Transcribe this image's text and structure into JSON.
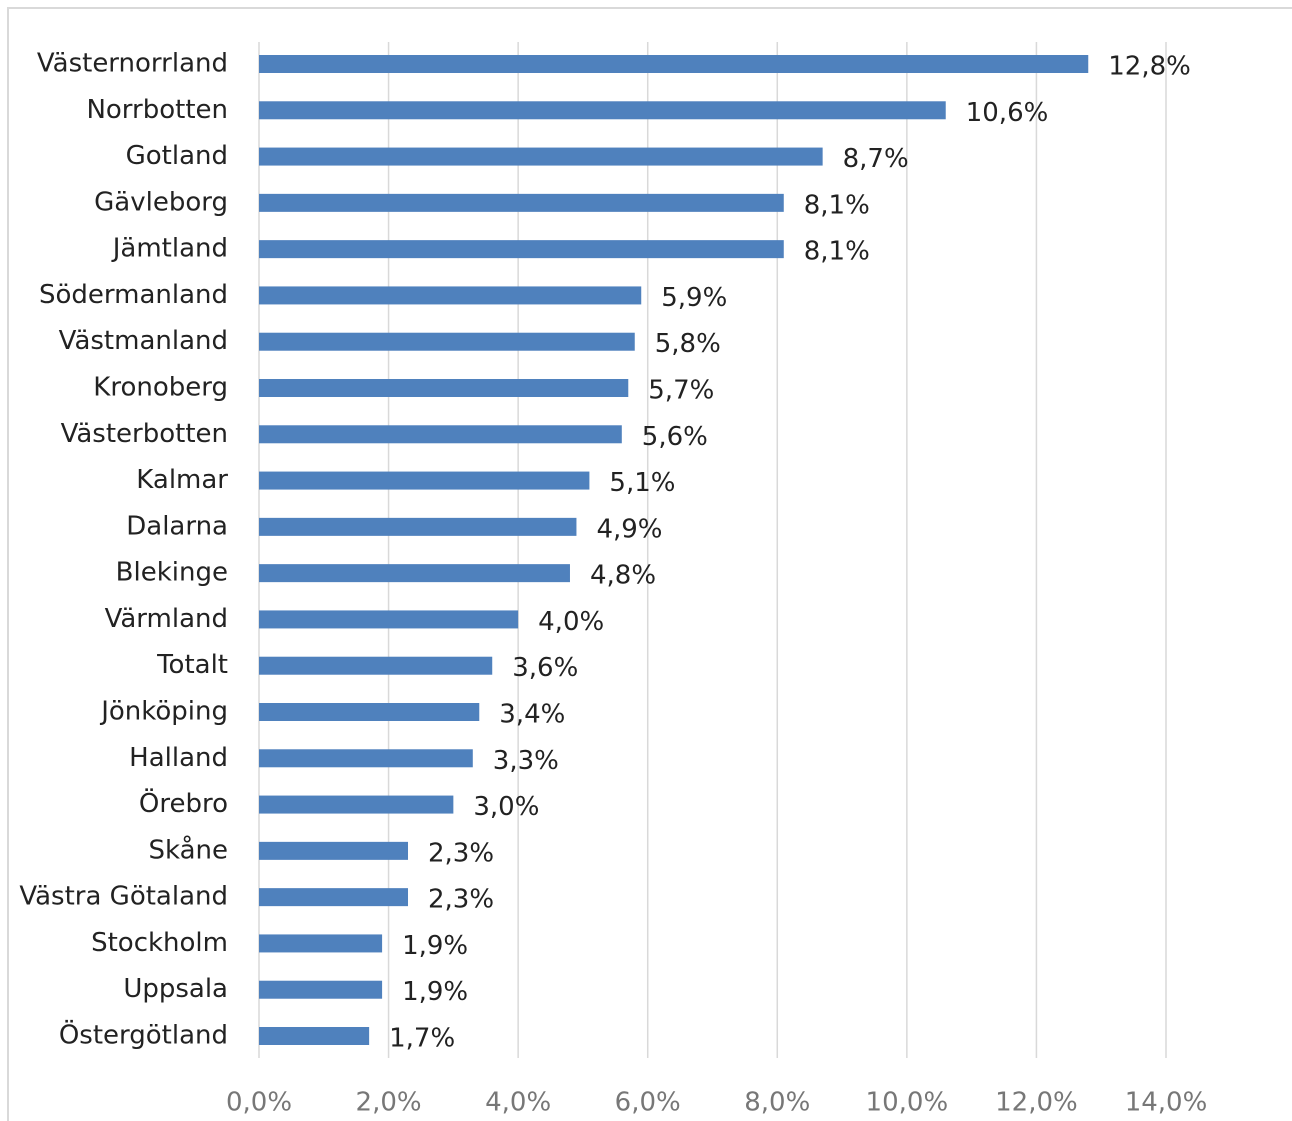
{
  "chart_data": {
    "type": "bar",
    "orientation": "horizontal",
    "categories": [
      "Västernorrland",
      "Norrbotten",
      "Gotland",
      "Gävleborg",
      "Jämtland",
      "Södermanland",
      "Västmanland",
      "Kronoberg",
      "Västerbotten",
      "Kalmar",
      "Dalarna",
      "Blekinge",
      "Värmland",
      "Totalt",
      "Jönköping",
      "Halland",
      "Örebro",
      "Skåne",
      "Västra Götaland",
      "Stockholm",
      "Uppsala",
      "Östergötland"
    ],
    "values": [
      12.8,
      10.6,
      8.7,
      8.1,
      8.1,
      5.9,
      5.8,
      5.7,
      5.6,
      5.1,
      4.9,
      4.8,
      4.0,
      3.6,
      3.4,
      3.3,
      3.0,
      2.3,
      2.3,
      1.9,
      1.9,
      1.7
    ],
    "value_labels": [
      "12,8%",
      "10,6%",
      "8,7%",
      "8,1%",
      "8,1%",
      "5,9%",
      "5,8%",
      "5,7%",
      "5,6%",
      "5,1%",
      "4,9%",
      "4,8%",
      "4,0%",
      "3,6%",
      "3,4%",
      "3,3%",
      "3,0%",
      "2,3%",
      "2,3%",
      "1,9%",
      "1,9%",
      "1,7%"
    ],
    "color": "#4f81bd",
    "xlim": [
      0,
      14
    ],
    "xticks": [
      {
        "value": 0,
        "label": "0,0%"
      },
      {
        "value": 2,
        "label": "2,0%"
      },
      {
        "value": 4,
        "label": "4,0%"
      },
      {
        "value": 6,
        "label": "6,0%"
      },
      {
        "value": 8,
        "label": "8,0%"
      },
      {
        "value": 10,
        "label": "10,0%"
      },
      {
        "value": 12,
        "label": "12,0%"
      },
      {
        "value": 14,
        "label": "14,0%"
      }
    ],
    "grid": true
  }
}
